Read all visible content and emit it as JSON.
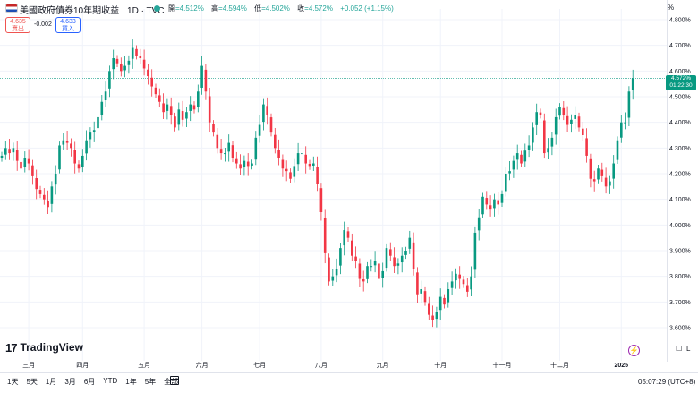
{
  "header": {
    "title": "美國政府債券10年期收益 · 1D · TVC",
    "ohlc": [
      {
        "k": "開",
        "v": "=4.512%"
      },
      {
        "k": "高",
        "v": "=4.594%"
      },
      {
        "k": "低",
        "v": "=4.502%"
      },
      {
        "k": "收",
        "v": "=4.572%"
      },
      {
        "k": "",
        "v": "+0.052 (+1.15%)"
      }
    ]
  },
  "trade": {
    "sell_price": "4.635",
    "sell_label": "賣出",
    "spread": "-0.002",
    "buy_price": "4.633",
    "buy_label": "買入"
  },
  "axis_unit": "%",
  "price_badge": {
    "value": "4.572%",
    "countdown": "01:22:30"
  },
  "logo_text": "TradingView",
  "axis_buttons": {
    "log": "L"
  },
  "footer": {
    "ranges": [
      "1天",
      "5天",
      "1月",
      "3月",
      "6月",
      "YTD",
      "1年",
      "5年",
      "全部"
    ],
    "clock": "05:07:29 (UTC+8)"
  },
  "colors": {
    "up": "#089981",
    "down": "#f23645",
    "last_price": "#089981"
  },
  "chart_data": {
    "type": "candlestick",
    "title": "美國政府債券10年期收益",
    "ylim": [
      3.56,
      4.87
    ],
    "y_ticks": [
      "4.800%",
      "4.700%",
      "4.600%",
      "4.500%",
      "4.400%",
      "4.300%",
      "4.200%",
      "4.100%",
      "4.000%",
      "3.900%",
      "3.800%",
      "3.700%",
      "3.600%"
    ],
    "y_tick_values": [
      4.8,
      4.7,
      4.6,
      4.5,
      4.4,
      4.3,
      4.2,
      4.1,
      4.0,
      3.9,
      3.8,
      3.7,
      3.6
    ],
    "x_labels": [
      {
        "label": "三月",
        "index": 7
      },
      {
        "label": "四月",
        "index": 21
      },
      {
        "label": "五月",
        "index": 37
      },
      {
        "label": "六月",
        "index": 52
      },
      {
        "label": "七月",
        "index": 67
      },
      {
        "label": "八月",
        "index": 83
      },
      {
        "label": "九月",
        "index": 99
      },
      {
        "label": "十月",
        "index": 114
      },
      {
        "label": "十一月",
        "index": 130
      },
      {
        "label": "十二月",
        "index": 145
      },
      {
        "label": "2025",
        "index": 161,
        "bold": true
      }
    ],
    "last_price": 4.572,
    "closes": [
      4.27,
      4.3,
      4.28,
      4.3,
      4.25,
      4.22,
      4.26,
      4.24,
      4.19,
      4.14,
      4.12,
      4.1,
      4.07,
      4.15,
      4.2,
      4.31,
      4.33,
      4.32,
      4.3,
      4.24,
      4.22,
      4.27,
      4.33,
      4.36,
      4.37,
      4.42,
      4.48,
      4.52,
      4.6,
      4.65,
      4.63,
      4.6,
      4.62,
      4.64,
      4.69,
      4.66,
      4.65,
      4.61,
      4.58,
      4.54,
      4.51,
      4.48,
      4.44,
      4.47,
      4.43,
      4.38,
      4.45,
      4.41,
      4.44,
      4.47,
      4.45,
      4.52,
      4.62,
      4.52,
      4.4,
      4.36,
      4.3,
      4.28,
      4.28,
      4.32,
      4.26,
      4.24,
      4.22,
      4.25,
      4.23,
      4.24,
      4.34,
      4.39,
      4.47,
      4.43,
      4.36,
      4.3,
      4.26,
      4.22,
      4.21,
      4.18,
      4.23,
      4.28,
      4.28,
      4.24,
      4.23,
      4.24,
      4.16,
      4.05,
      3.89,
      3.78,
      3.8,
      3.83,
      3.91,
      3.98,
      3.95,
      3.88,
      3.86,
      3.79,
      3.78,
      3.84,
      3.84,
      3.86,
      3.79,
      3.82,
      3.91,
      3.88,
      3.84,
      3.85,
      3.88,
      3.9,
      3.95,
      3.83,
      3.73,
      3.75,
      3.7,
      3.65,
      3.63,
      3.66,
      3.72,
      3.69,
      3.75,
      3.78,
      3.81,
      3.79,
      3.77,
      3.74,
      3.8,
      3.97,
      4.03,
      4.11,
      4.08,
      4.06,
      4.1,
      4.08,
      4.12,
      4.2,
      4.21,
      4.25,
      4.28,
      4.24,
      4.29,
      4.31,
      4.38,
      4.44,
      4.43,
      4.28,
      4.3,
      4.34,
      4.42,
      4.46,
      4.43,
      4.39,
      4.41,
      4.43,
      4.38,
      4.35,
      4.27,
      4.18,
      4.17,
      4.22,
      4.19,
      4.15,
      4.17,
      4.24,
      4.33,
      4.4,
      4.4,
      4.52,
      4.572
    ]
  }
}
